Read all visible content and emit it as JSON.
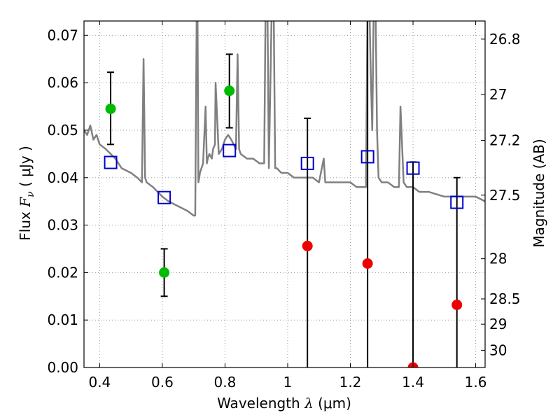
{
  "chart_data": {
    "type": "scatter",
    "xlabel": {
      "prefix": "Wavelength  ",
      "symbol": "λ",
      "unit": " (μm)"
    },
    "ylabel": {
      "prefix": "Flux  ",
      "symbol": "F",
      "subscript": "ν",
      "unit": "  ( μJy )"
    },
    "y2label": "Magnitude (AB)",
    "xlim": [
      0.35,
      1.63
    ],
    "ylim": [
      0.0,
      0.073
    ],
    "grid": true,
    "x_ticks": [
      {
        "value": 0.4,
        "label": "0.4"
      },
      {
        "value": 0.6,
        "label": "0.6"
      },
      {
        "value": 0.8,
        "label": "0.8"
      },
      {
        "value": 1.0,
        "label": "1"
      },
      {
        "value": 1.2,
        "label": "1.2"
      },
      {
        "value": 1.4,
        "label": "1.4"
      },
      {
        "value": 1.6,
        "label": "1.6"
      }
    ],
    "y_ticks": [
      {
        "value": 0.0,
        "label": "0.00"
      },
      {
        "value": 0.01,
        "label": "0.01"
      },
      {
        "value": 0.02,
        "label": "0.02"
      },
      {
        "value": 0.03,
        "label": "0.03"
      },
      {
        "value": 0.04,
        "label": "0.04"
      },
      {
        "value": 0.05,
        "label": "0.05"
      },
      {
        "value": 0.06,
        "label": "0.06"
      },
      {
        "value": 0.07,
        "label": "0.07"
      }
    ],
    "y2_ticks": [
      {
        "value": 26.8,
        "label": "26.8"
      },
      {
        "value": 27.0,
        "label": "27"
      },
      {
        "value": 27.2,
        "label": "27.2"
      },
      {
        "value": 27.5,
        "label": "27.5"
      },
      {
        "value": 28.0,
        "label": "28"
      },
      {
        "value": 28.5,
        "label": "28.5"
      },
      {
        "value": 29.0,
        "label": "29"
      },
      {
        "value": 30.0,
        "label": "30"
      }
    ],
    "colors": {
      "spectrum": "#808080",
      "detection": "#00bb00",
      "upper_limit": "#ee0000",
      "model": "#0000cc",
      "errorbar": "#000000",
      "grid": "#999999"
    },
    "spectrum": {
      "x": [
        0.35,
        0.36,
        0.37,
        0.38,
        0.39,
        0.4,
        0.42,
        0.45,
        0.47,
        0.5,
        0.52,
        0.535,
        0.54,
        0.545,
        0.55,
        0.57,
        0.6,
        0.62,
        0.65,
        0.68,
        0.7,
        0.705,
        0.71,
        0.712,
        0.715,
        0.718,
        0.72,
        0.73,
        0.738,
        0.742,
        0.745,
        0.75,
        0.758,
        0.762,
        0.768,
        0.77,
        0.78,
        0.79,
        0.8,
        0.81,
        0.82,
        0.835,
        0.84,
        0.845,
        0.85,
        0.87,
        0.89,
        0.91,
        0.925,
        0.93,
        0.935,
        0.94,
        0.95,
        0.955,
        0.96,
        0.965,
        0.98,
        1.0,
        1.02,
        1.05,
        1.08,
        1.1,
        1.115,
        1.12,
        1.13,
        1.15,
        1.18,
        1.2,
        1.22,
        1.25,
        1.255,
        1.26,
        1.265,
        1.27,
        1.275,
        1.28,
        1.285,
        1.29,
        1.3,
        1.32,
        1.34,
        1.355,
        1.36,
        1.37,
        1.38,
        1.4,
        1.42,
        1.45,
        1.5,
        1.55,
        1.58,
        1.6,
        1.63
      ],
      "y": [
        0.05,
        0.049,
        0.051,
        0.048,
        0.049,
        0.047,
        0.046,
        0.044,
        0.042,
        0.041,
        0.04,
        0.039,
        0.065,
        0.04,
        0.039,
        0.038,
        0.036,
        0.035,
        0.034,
        0.033,
        0.032,
        0.032,
        0.079,
        0.077,
        0.039,
        0.04,
        0.041,
        0.043,
        0.055,
        0.043,
        0.044,
        0.045,
        0.044,
        0.046,
        0.047,
        0.06,
        0.045,
        0.046,
        0.048,
        0.049,
        0.048,
        0.046,
        0.066,
        0.046,
        0.045,
        0.044,
        0.044,
        0.043,
        0.043,
        0.079,
        0.079,
        0.042,
        0.079,
        0.079,
        0.042,
        0.042,
        0.041,
        0.041,
        0.04,
        0.04,
        0.04,
        0.039,
        0.044,
        0.039,
        0.039,
        0.039,
        0.039,
        0.039,
        0.038,
        0.038,
        0.079,
        0.079,
        0.062,
        0.05,
        0.079,
        0.079,
        0.05,
        0.04,
        0.039,
        0.039,
        0.038,
        0.038,
        0.055,
        0.039,
        0.038,
        0.038,
        0.037,
        0.037,
        0.036,
        0.036,
        0.036,
        0.036,
        0.035
      ]
    },
    "detections": [
      {
        "x": 0.435,
        "y": 0.0545,
        "err_low": 0.047,
        "err_high": 0.0622
      },
      {
        "x": 0.606,
        "y": 0.02,
        "err_low": 0.015,
        "err_high": 0.025
      },
      {
        "x": 0.814,
        "y": 0.0583,
        "err_low": 0.0505,
        "err_high": 0.066
      }
    ],
    "upper_limits": [
      {
        "x": 1.063,
        "y": 0.0256,
        "err_low": 0.0,
        "err_high": 0.0525
      },
      {
        "x": 1.255,
        "y": 0.0219,
        "err_low": 0.0,
        "err_high": 0.079
      },
      {
        "x": 1.4,
        "y": 0.0,
        "err_low": 0.0,
        "err_high": 0.0433
      },
      {
        "x": 1.54,
        "y": 0.0132,
        "err_low": 0.0,
        "err_high": 0.04
      }
    ],
    "model_points": [
      {
        "x": 0.435,
        "y": 0.0432
      },
      {
        "x": 0.606,
        "y": 0.0358
      },
      {
        "x": 0.814,
        "y": 0.0457
      },
      {
        "x": 1.063,
        "y": 0.043
      },
      {
        "x": 1.255,
        "y": 0.0444
      },
      {
        "x": 1.4,
        "y": 0.042
      },
      {
        "x": 1.54,
        "y": 0.0348
      }
    ]
  }
}
